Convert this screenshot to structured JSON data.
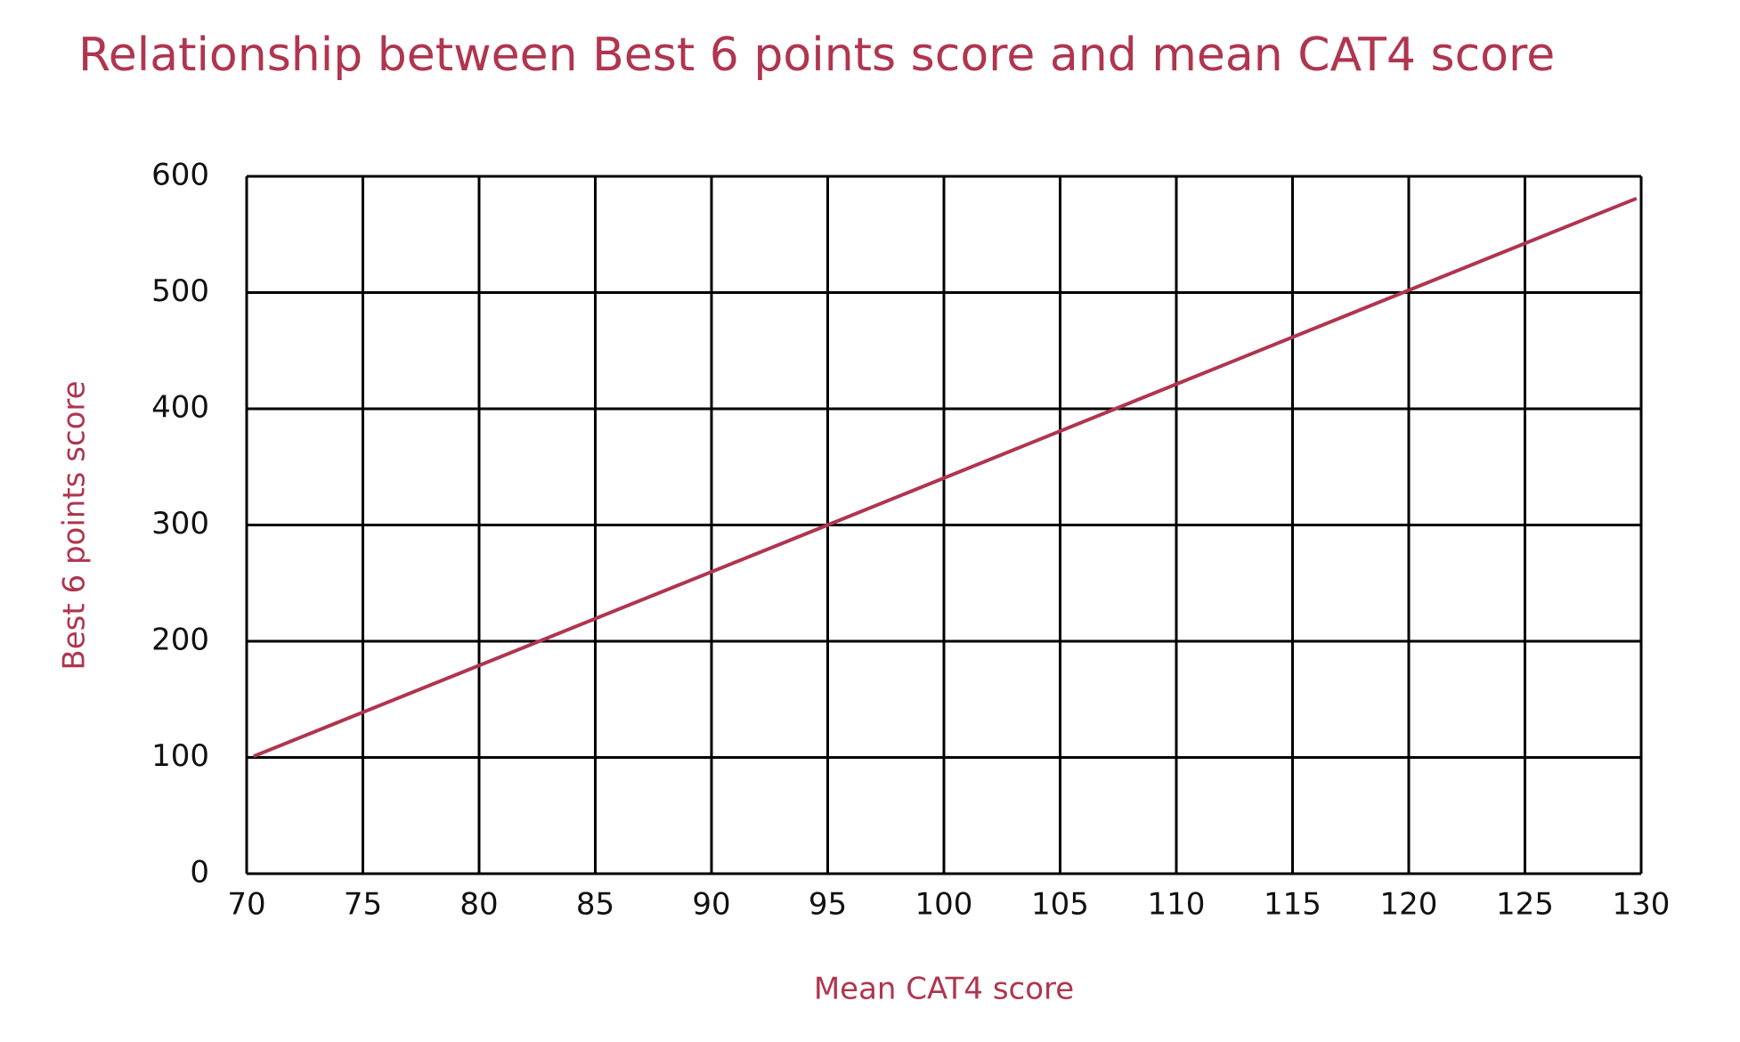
{
  "chart_data": {
    "type": "line",
    "title": "Relationship between Best 6 points score and mean CAT4 score",
    "x_label": "Mean CAT4 score",
    "y_label": "Best 6 points score",
    "x": [
      70.3,
      95,
      120,
      129.8
    ],
    "series": [
      {
        "name": "Best 6 points score",
        "color": "#b0354f",
        "values": [
          101,
          300,
          502,
          581
        ]
      }
    ],
    "xlim": [
      70,
      130
    ],
    "xticks": [
      70,
      75,
      80,
      85,
      90,
      95,
      100,
      105,
      110,
      115,
      120,
      125,
      130
    ],
    "ylim": [
      0,
      600
    ],
    "yticks": [
      0,
      100,
      200,
      300,
      400,
      500,
      600
    ],
    "grid": true
  }
}
